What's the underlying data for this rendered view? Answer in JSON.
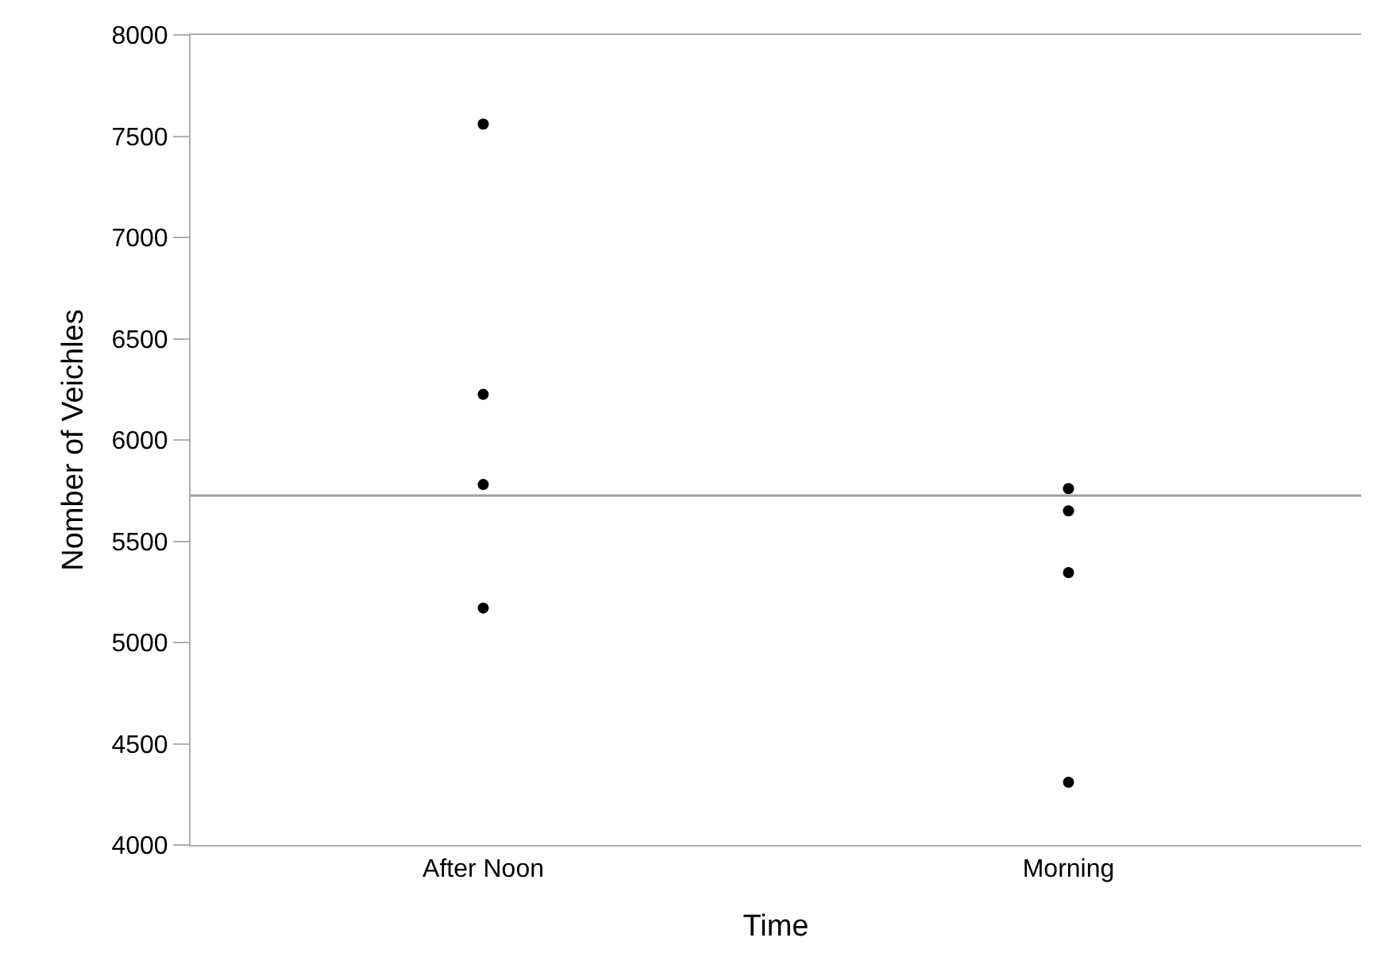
{
  "chart_data": {
    "type": "scatter",
    "xlabel": "Time",
    "ylabel": "Nomber of Veichles",
    "categories": [
      "After Noon",
      "Morning"
    ],
    "series": [
      {
        "color": "#000000",
        "x": [
          "After Noon",
          "After Noon",
          "After Noon",
          "After Noon",
          "Morning",
          "Morning",
          "Morning",
          "Morning"
        ],
        "values": [
          7560,
          6225,
          5780,
          5170,
          5760,
          5650,
          5345,
          4310
        ]
      }
    ],
    "ylim": [
      4000,
      8000
    ],
    "yticks": [
      4000,
      4500,
      5000,
      5500,
      6000,
      6500,
      7000,
      7500,
      8000
    ],
    "ref_lines": [
      {
        "axis": "y",
        "value": 5725,
        "color": "#a0a0a0"
      }
    ],
    "marker": "circle"
  }
}
